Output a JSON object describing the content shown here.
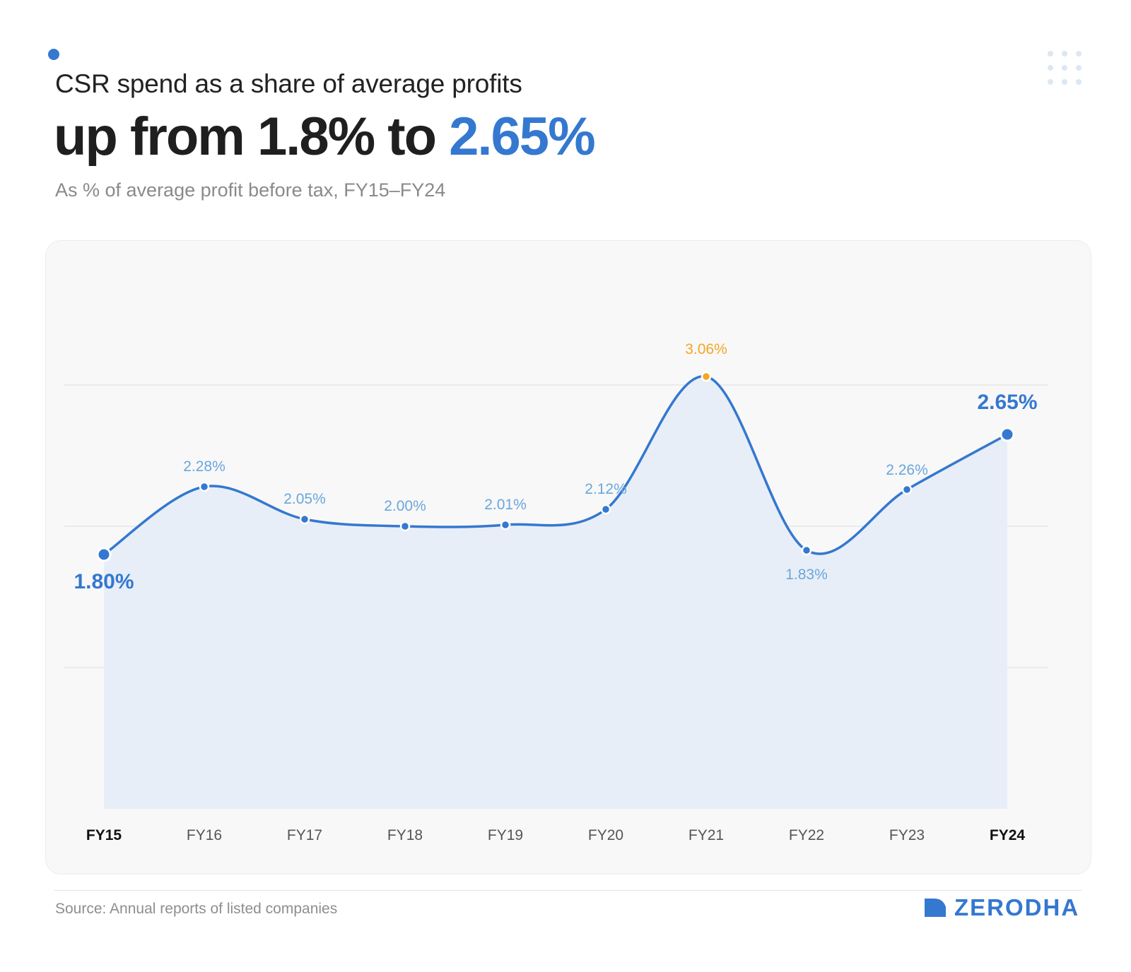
{
  "header": {
    "title": "CSR spend as a share of average profits",
    "headline_prefix": "up from 1.8% to ",
    "headline_highlight": "2.65%",
    "subtitle": "As % of average profit before tax, FY15–FY24"
  },
  "footer": {
    "source": "Source: Annual reports of listed companies",
    "brand": "ZERODHA",
    "brand_icon": "zerodha-logo-icon"
  },
  "colors": {
    "accent": "#3478d0",
    "highlight": "#f5a623",
    "label": "#6aa6dc",
    "area_fill": "#e8eef7"
  },
  "chart_data": {
    "type": "area",
    "categories": [
      "FY15",
      "FY16",
      "FY17",
      "FY18",
      "FY19",
      "FY20",
      "FY21",
      "FY22",
      "FY23",
      "FY24"
    ],
    "values": [
      1.8,
      2.28,
      2.05,
      2.0,
      2.01,
      2.12,
      3.06,
      1.83,
      2.26,
      2.65
    ],
    "data_labels": [
      "1.80%",
      "2.28%",
      "2.05%",
      "2.00%",
      "2.01%",
      "2.12%",
      "3.06%",
      "1.83%",
      "2.26%",
      "2.65%"
    ],
    "emphasized_categories": [
      "FY15",
      "FY24"
    ],
    "peak_category": "FY21",
    "ylim": [
      0,
      3
    ],
    "gridlines": [
      1,
      2,
      3
    ],
    "grid": true,
    "smooth": true,
    "xlabel": "",
    "ylabel": ""
  }
}
